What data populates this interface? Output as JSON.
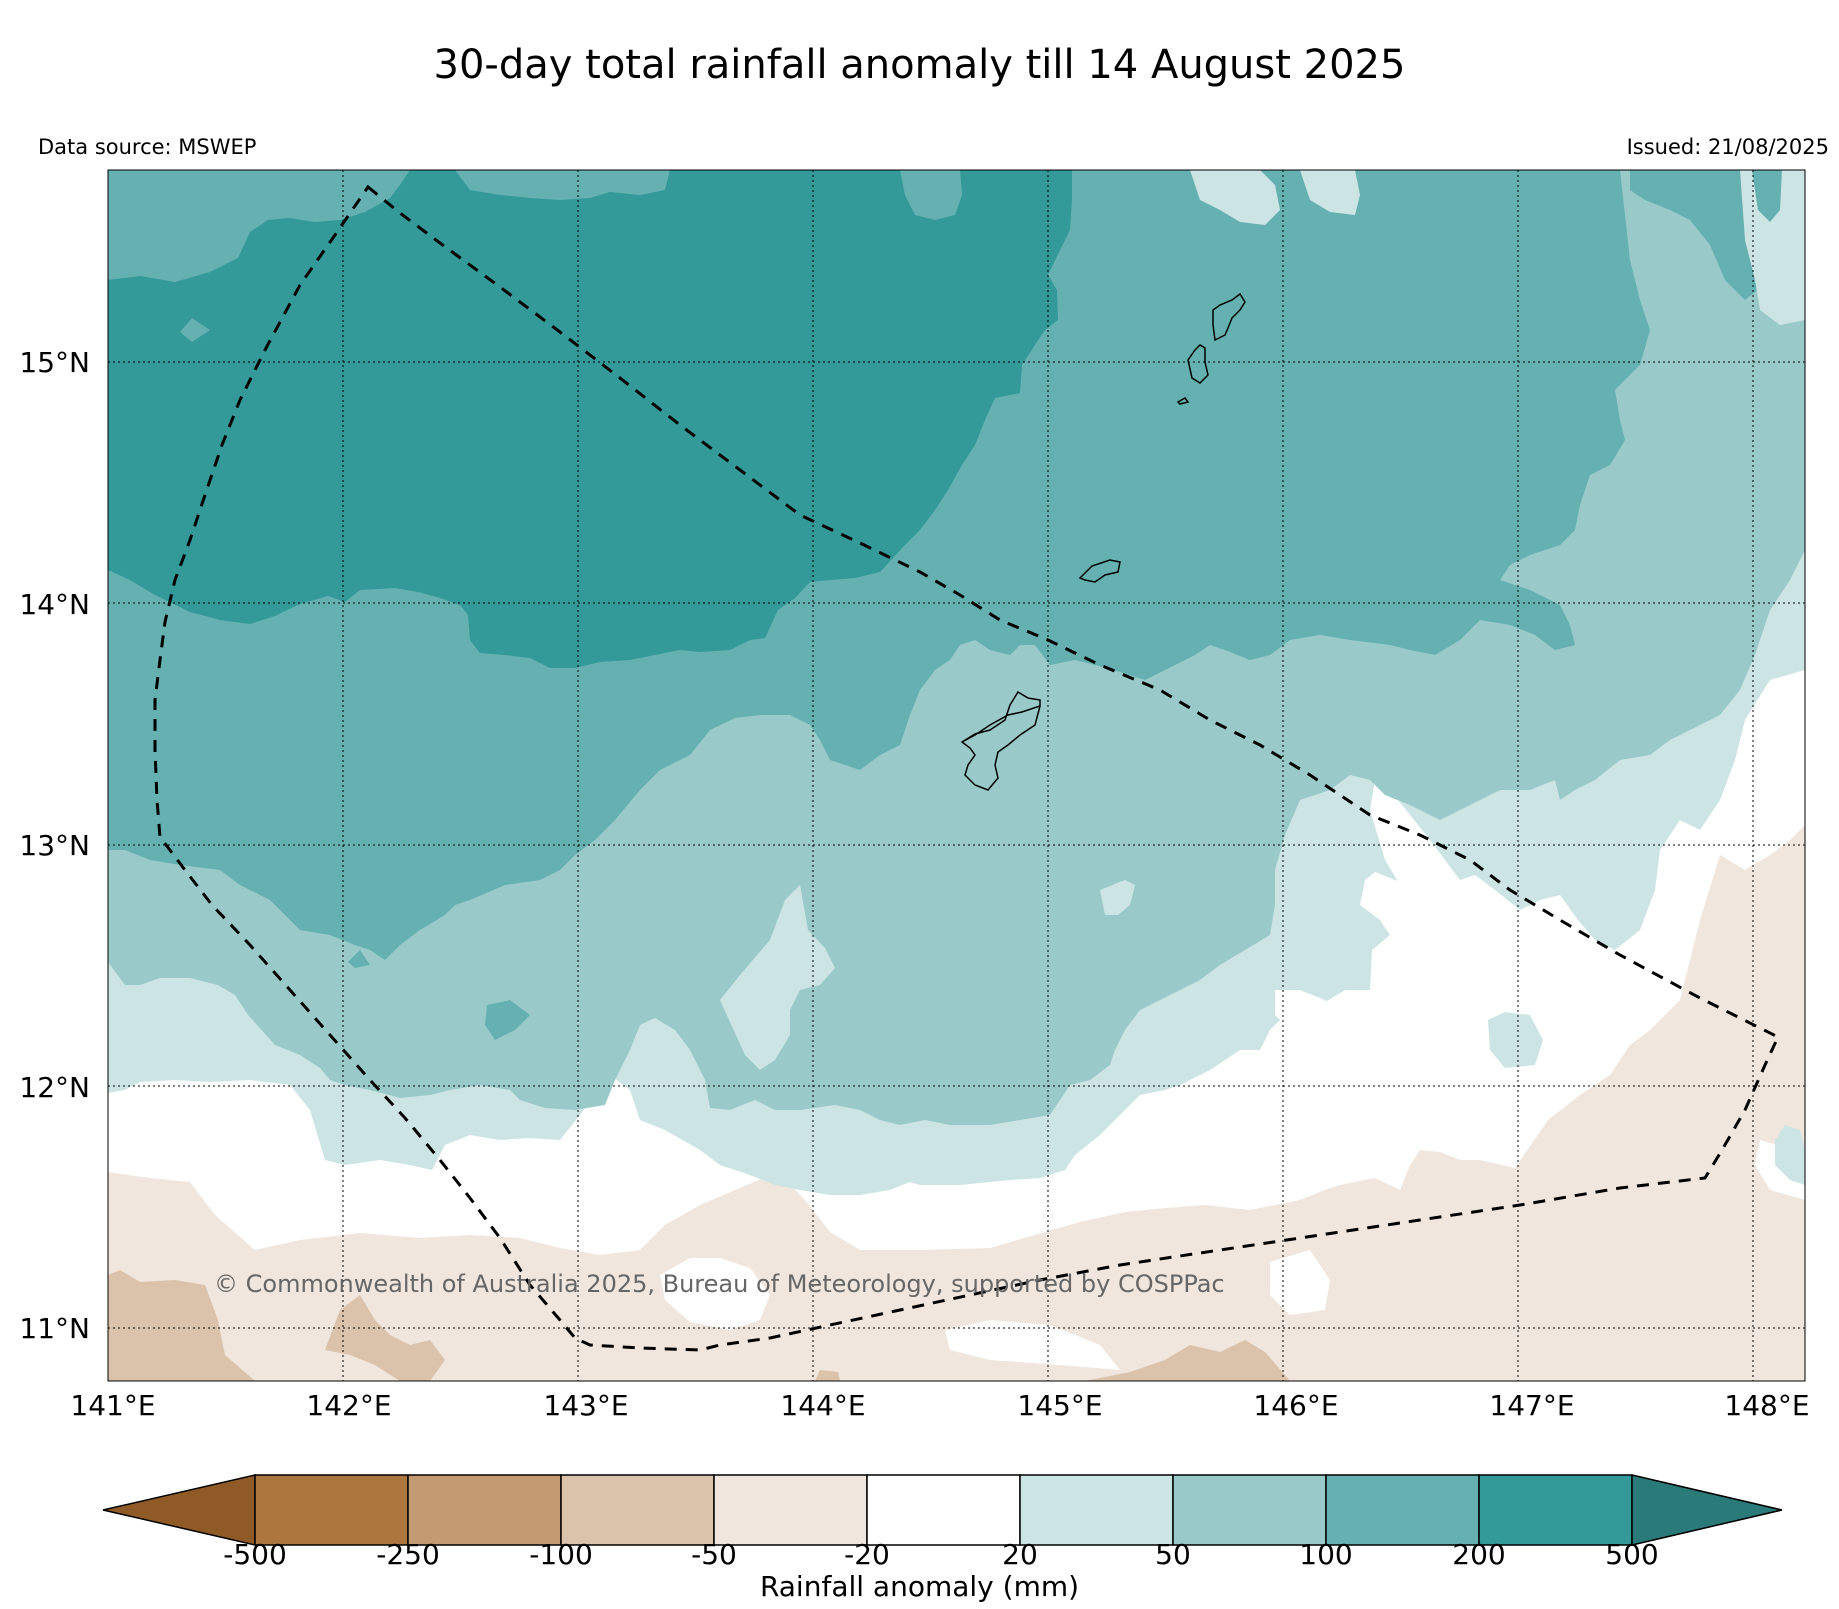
{
  "title": "30-day total rainfall anomaly till 14 August 2025",
  "data_source": "Data source: MSWEP",
  "issued": "Issued: 21/08/2025",
  "copyright": "© Commonwealth of Australia 2025, Bureau of Meteorology, supported by COSPPac",
  "map": {
    "lat_labels": [
      "15°N",
      "14°N",
      "13°N",
      "12°N",
      "11°N"
    ],
    "lon_labels": [
      "141°E",
      "142°E",
      "143°E",
      "144°E",
      "145°E",
      "146°E",
      "147°E",
      "148°E"
    ],
    "boundary": "dashed",
    "islands": [
      "Guam",
      "Rota",
      "Tinian",
      "Saipan"
    ]
  },
  "colorbar": {
    "title": "Rainfall anomaly (mm)",
    "ticks": [
      "-500",
      "-250",
      "-100",
      "-50",
      "-20",
      "20",
      "50",
      "100",
      "200",
      "500"
    ],
    "colors": [
      "#8f5a25",
      "#ad763f",
      "#c39a72",
      "#dbc2aa",
      "#f0e6dd",
      "#ffffff",
      "#cde4e4",
      "#99c9c9",
      "#65b1b1",
      "#339999",
      "#2b7a7a"
    ]
  }
}
